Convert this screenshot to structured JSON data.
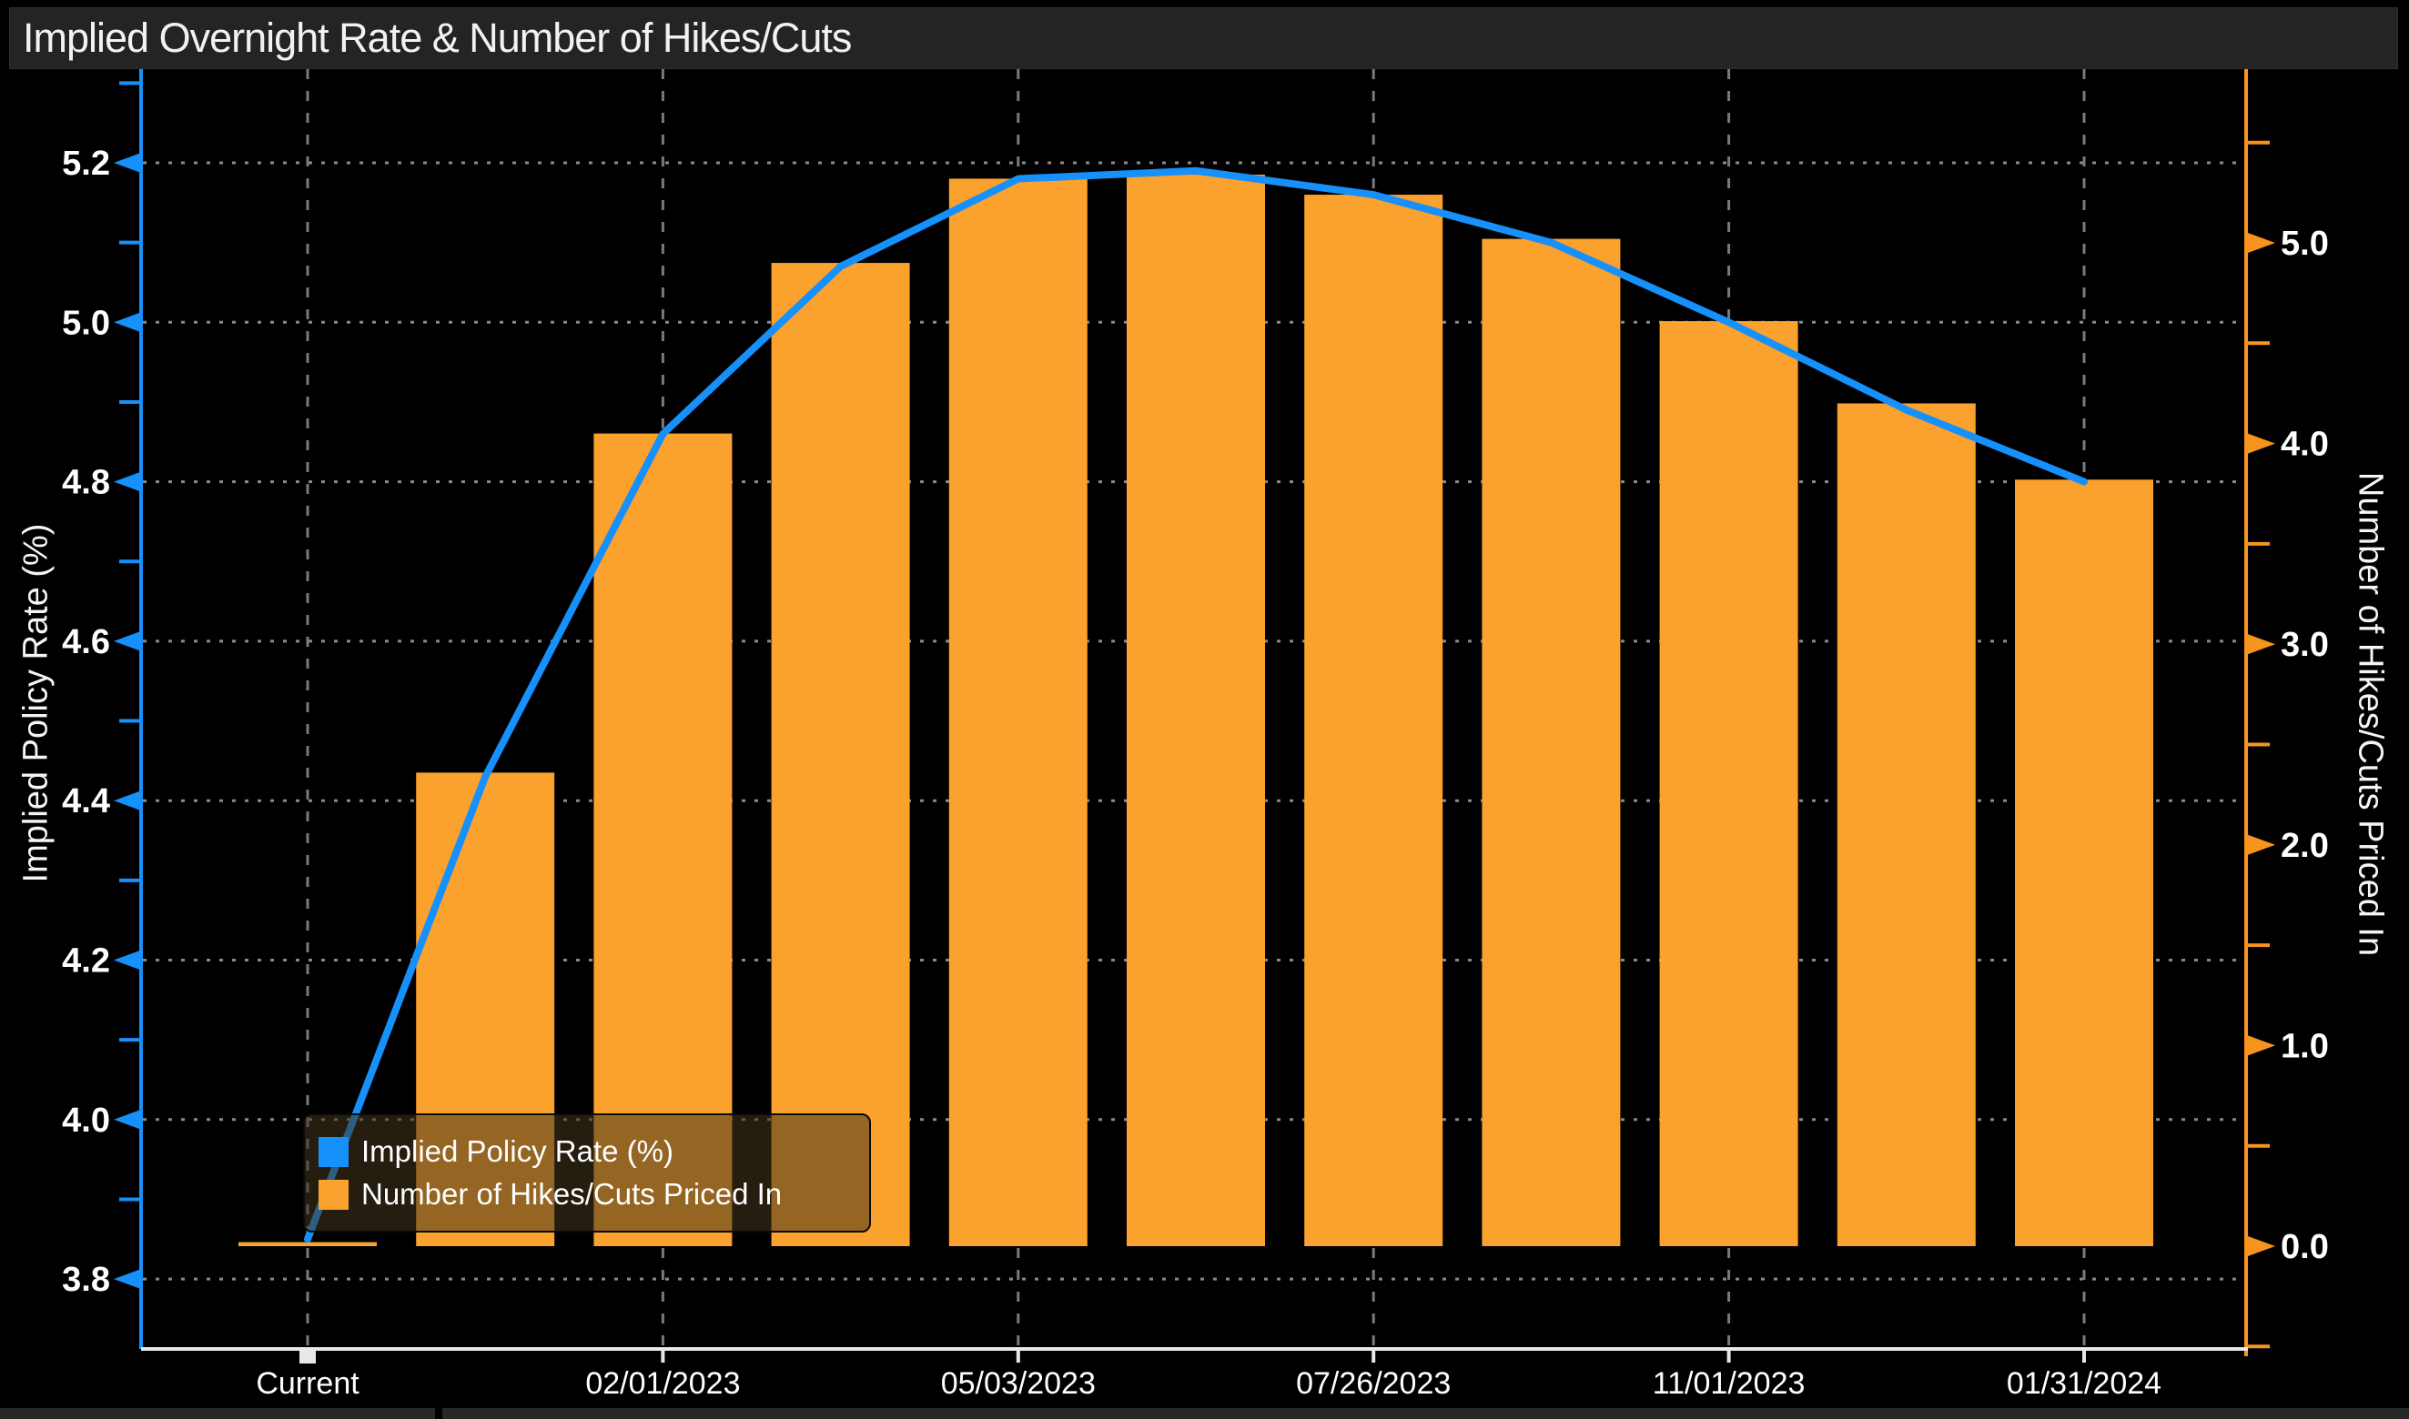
{
  "window": {
    "title": "Implied Overnight Rate & Number of Hikes/Cuts"
  },
  "colors": {
    "background": "#000000",
    "title_bar_bg": "#242424",
    "title_text": "#f2f2f2",
    "line_series": "#1690fa",
    "bar_series": "#fba12e",
    "left_axis": "#1690fa",
    "right_axis": "#f7941d",
    "x_axis": "#e8e8e8",
    "grid_horizontal": "#8a8a8a",
    "grid_vertical": "#7a7a7a",
    "tick_text": "#ffffff",
    "legend_bg": "rgba(66,52,30,0.55)"
  },
  "axes": {
    "left": {
      "label": "Implied Policy Rate (%)",
      "ticks": [
        "5.2",
        "5.0",
        "4.8",
        "4.6",
        "4.4",
        "4.2",
        "4.0",
        "3.8"
      ],
      "minor_ticks": [
        5.3,
        5.1,
        4.9,
        4.7,
        4.5,
        4.3,
        4.1,
        3.9
      ]
    },
    "right": {
      "label": "Number of Hikes/Cuts Priced In",
      "ticks": [
        "5.0",
        "4.0",
        "3.0",
        "2.0",
        "1.0",
        "0.0"
      ],
      "minor_ticks": [
        5.5,
        4.5,
        3.5,
        2.5,
        1.5,
        0.5,
        -0.5
      ]
    },
    "x": {
      "tick_labels": [
        "Current",
        "02/01/2023",
        "05/03/2023",
        "07/26/2023",
        "11/01/2023",
        "01/31/2024"
      ],
      "tick_indices": [
        0,
        2,
        4,
        6,
        8,
        10
      ]
    }
  },
  "legend": {
    "items": [
      {
        "label": "Implied Policy Rate (%)",
        "swatch_color": "#1690fa"
      },
      {
        "label": "Number of Hikes/Cuts Priced In",
        "swatch_color": "#fba12e"
      }
    ]
  },
  "chart_data": {
    "type": "bar",
    "title": "Implied Overnight Rate & Number of Hikes/Cuts",
    "categories": [
      "Current",
      "",
      "02/01/2023",
      "",
      "05/03/2023",
      "",
      "07/26/2023",
      "",
      "11/01/2023",
      "",
      "01/31/2024"
    ],
    "series": [
      {
        "name": "Implied Policy Rate (%)",
        "type": "line",
        "y_axis": "left",
        "color": "#1690fa",
        "values": [
          3.85,
          4.43,
          4.86,
          5.07,
          5.18,
          5.19,
          5.16,
          5.1,
          5.0,
          4.89,
          4.8
        ]
      },
      {
        "name": "Number of Hikes/Cuts Priced In",
        "type": "bar",
        "y_axis": "right",
        "color": "#fba12e",
        "values": [
          0.02,
          2.36,
          4.05,
          4.9,
          5.32,
          5.34,
          5.24,
          5.02,
          4.61,
          4.2,
          3.82
        ]
      }
    ],
    "ylabel_left": "Implied Policy Rate (%)",
    "ylabel_right": "Number of Hikes/Cuts Priced In",
    "left_axis_range": [
      3.71,
      5.32
    ],
    "right_axis_range": [
      -0.51,
      5.87
    ],
    "grid": true,
    "legend_position": "bottom-left"
  }
}
